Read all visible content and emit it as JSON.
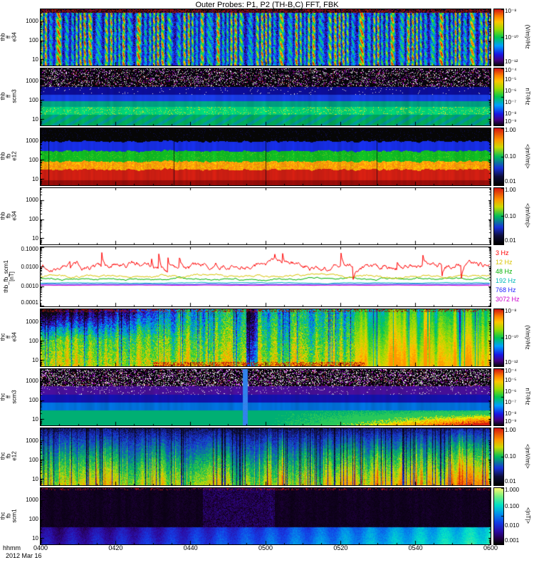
{
  "title": "Outer Probes: P1, P2 (TH-B,C) FFT, FBK",
  "time_axis": {
    "label": "hhmm",
    "date": "2012 Mar 16",
    "ticks": [
      "0400",
      "0420",
      "0440",
      "0500",
      "0520",
      "0540",
      "0600"
    ]
  },
  "chart_data": {
    "type": "heatmap",
    "description": "Stacked THEMIS P1/P2 (TH-B, TH-C) FFT and filter-bank spectrogram summary plot, 04:00-06:00 UT on 2012 Mar 16",
    "x_axis": {
      "label": "hhmm",
      "date": "2012 Mar 16",
      "ticks": [
        "0400",
        "0420",
        "0440",
        "0500",
        "0520",
        "0540",
        "0600"
      ]
    },
    "panels": [
      {
        "id": "thb-ff-e34",
        "type": "spectrogram",
        "visual_pattern": "fft_e",
        "ylabel_lines": [
          "thb",
          "ff",
          "e34"
        ],
        "y_ticks": [
          "1000",
          "100",
          "10"
        ],
        "colorbar": {
          "ticks": [
            "10⁻⁸",
            "10⁻¹⁰",
            "10⁻¹²"
          ],
          "unit": "(V/m)²/Hz"
        }
      },
      {
        "id": "thb-ff-scm3",
        "type": "spectrogram",
        "visual_pattern": "fft_b_b",
        "ylabel_lines": [
          "thb",
          "ff",
          "scm3"
        ],
        "y_ticks": [
          "1000",
          "100",
          "10"
        ],
        "colorbar": {
          "ticks": [
            "10⁻⁴",
            "10⁻⁵",
            "10⁻⁶",
            "10⁻⁷",
            "10⁻⁸",
            "10⁻⁹"
          ],
          "unit": "nT²/Hz"
        }
      },
      {
        "id": "thb-fb-e12",
        "type": "spectrogram",
        "visual_pattern": "fbk_b",
        "ylabel_lines": [
          "thb",
          "fb",
          "e12"
        ],
        "y_ticks": [
          "1000",
          "100",
          "10"
        ],
        "colorbar": {
          "ticks": [
            "1.00",
            "0.10",
            "0.01"
          ],
          "unit": "<|mV/m|>"
        }
      },
      {
        "id": "thb-fb-e34",
        "type": "spectrogram",
        "visual_pattern": "empty",
        "ylabel_lines": [
          "thb",
          "fb",
          "e34"
        ],
        "y_ticks": [
          "1000",
          "100",
          "10"
        ],
        "colorbar": {
          "ticks": [
            "1.00",
            "0.10",
            "0.01"
          ],
          "unit": "<|mV/m|>"
        }
      },
      {
        "id": "thb-fb-scm1",
        "type": "line",
        "visual_pattern": "lines",
        "ylabel_lines": [
          "thb_fb_scm1",
          "[nT]"
        ],
        "y_ticks": [
          "0.1000",
          "0.0100",
          "0.0010",
          "0.0001"
        ],
        "ylim": [
          0.0001,
          0.1
        ],
        "legend": [
          {
            "label": "3 Hz",
            "color": "#ff0000"
          },
          {
            "label": "12 Hz",
            "color": "#d8c400"
          },
          {
            "label": "48 Hz",
            "color": "#00b000"
          },
          {
            "label": "192 Hz",
            "color": "#00b8b8"
          },
          {
            "label": "768 Hz",
            "color": "#2020ff"
          },
          {
            "label": "3072 Hz",
            "color": "#cc00cc"
          }
        ],
        "series": [
          {
            "name": "3 Hz",
            "color": "#ff0000",
            "level": 0.011,
            "wiggle": 0.18,
            "spikes": true
          },
          {
            "name": "12 Hz",
            "color": "#d8c400",
            "level": 0.0033,
            "wiggle": 0.07
          },
          {
            "name": "48 Hz",
            "color": "#00b000",
            "level": 0.0024,
            "wiggle": 0.05
          },
          {
            "name": "192 Hz",
            "color": "#00b8b8",
            "level": 0.00145,
            "wiggle": 0.015
          },
          {
            "name": "768 Hz",
            "color": "#2020ff",
            "level": 0.00125,
            "wiggle": 0.008
          },
          {
            "name": "3072 Hz",
            "color": "#cc00cc",
            "level": 0.00112,
            "wiggle": 0.006
          }
        ]
      },
      {
        "id": "thc-ff-e34",
        "type": "spectrogram",
        "visual_pattern": "fft_e_c",
        "ylabel_lines": [
          "thc",
          "ff",
          "e34"
        ],
        "y_ticks": [
          "1000",
          "100",
          "10"
        ],
        "colorbar": {
          "ticks": [
            "10⁻⁸",
            "10⁻¹⁰",
            "10⁻¹²"
          ],
          "unit": "(V/m)²/Hz"
        }
      },
      {
        "id": "thc-ff-scm3",
        "type": "spectrogram",
        "visual_pattern": "fft_b_c",
        "ylabel_lines": [
          "thc",
          "ff",
          "scm3"
        ],
        "y_ticks": [
          "1000",
          "100",
          "10"
        ],
        "colorbar": {
          "ticks": [
            "10⁻⁴",
            "10⁻⁵",
            "10⁻⁶",
            "10⁻⁷",
            "10⁻⁸",
            "10⁻⁹"
          ],
          "unit": "nT²/Hz"
        }
      },
      {
        "id": "thc-fb-e12",
        "type": "spectrogram",
        "visual_pattern": "fbk_c",
        "ylabel_lines": [
          "thc",
          "fb",
          "e12"
        ],
        "y_ticks": [
          "1000",
          "100",
          "10"
        ],
        "colorbar": {
          "ticks": [
            "1.00",
            "0.10",
            "0.01"
          ],
          "unit": "<|mV/m|>"
        }
      },
      {
        "id": "thc-fb-scm1",
        "type": "spectrogram",
        "visual_pattern": "scm_c",
        "ylabel_lines": [
          "thc",
          "fb",
          "scm1"
        ],
        "y_ticks": [
          "1000",
          "100",
          "10"
        ],
        "colorbar": {
          "ticks": [
            "1.000",
            "0.100",
            "0.010",
            "0.001"
          ],
          "unit": "<|nT|>"
        }
      }
    ]
  }
}
